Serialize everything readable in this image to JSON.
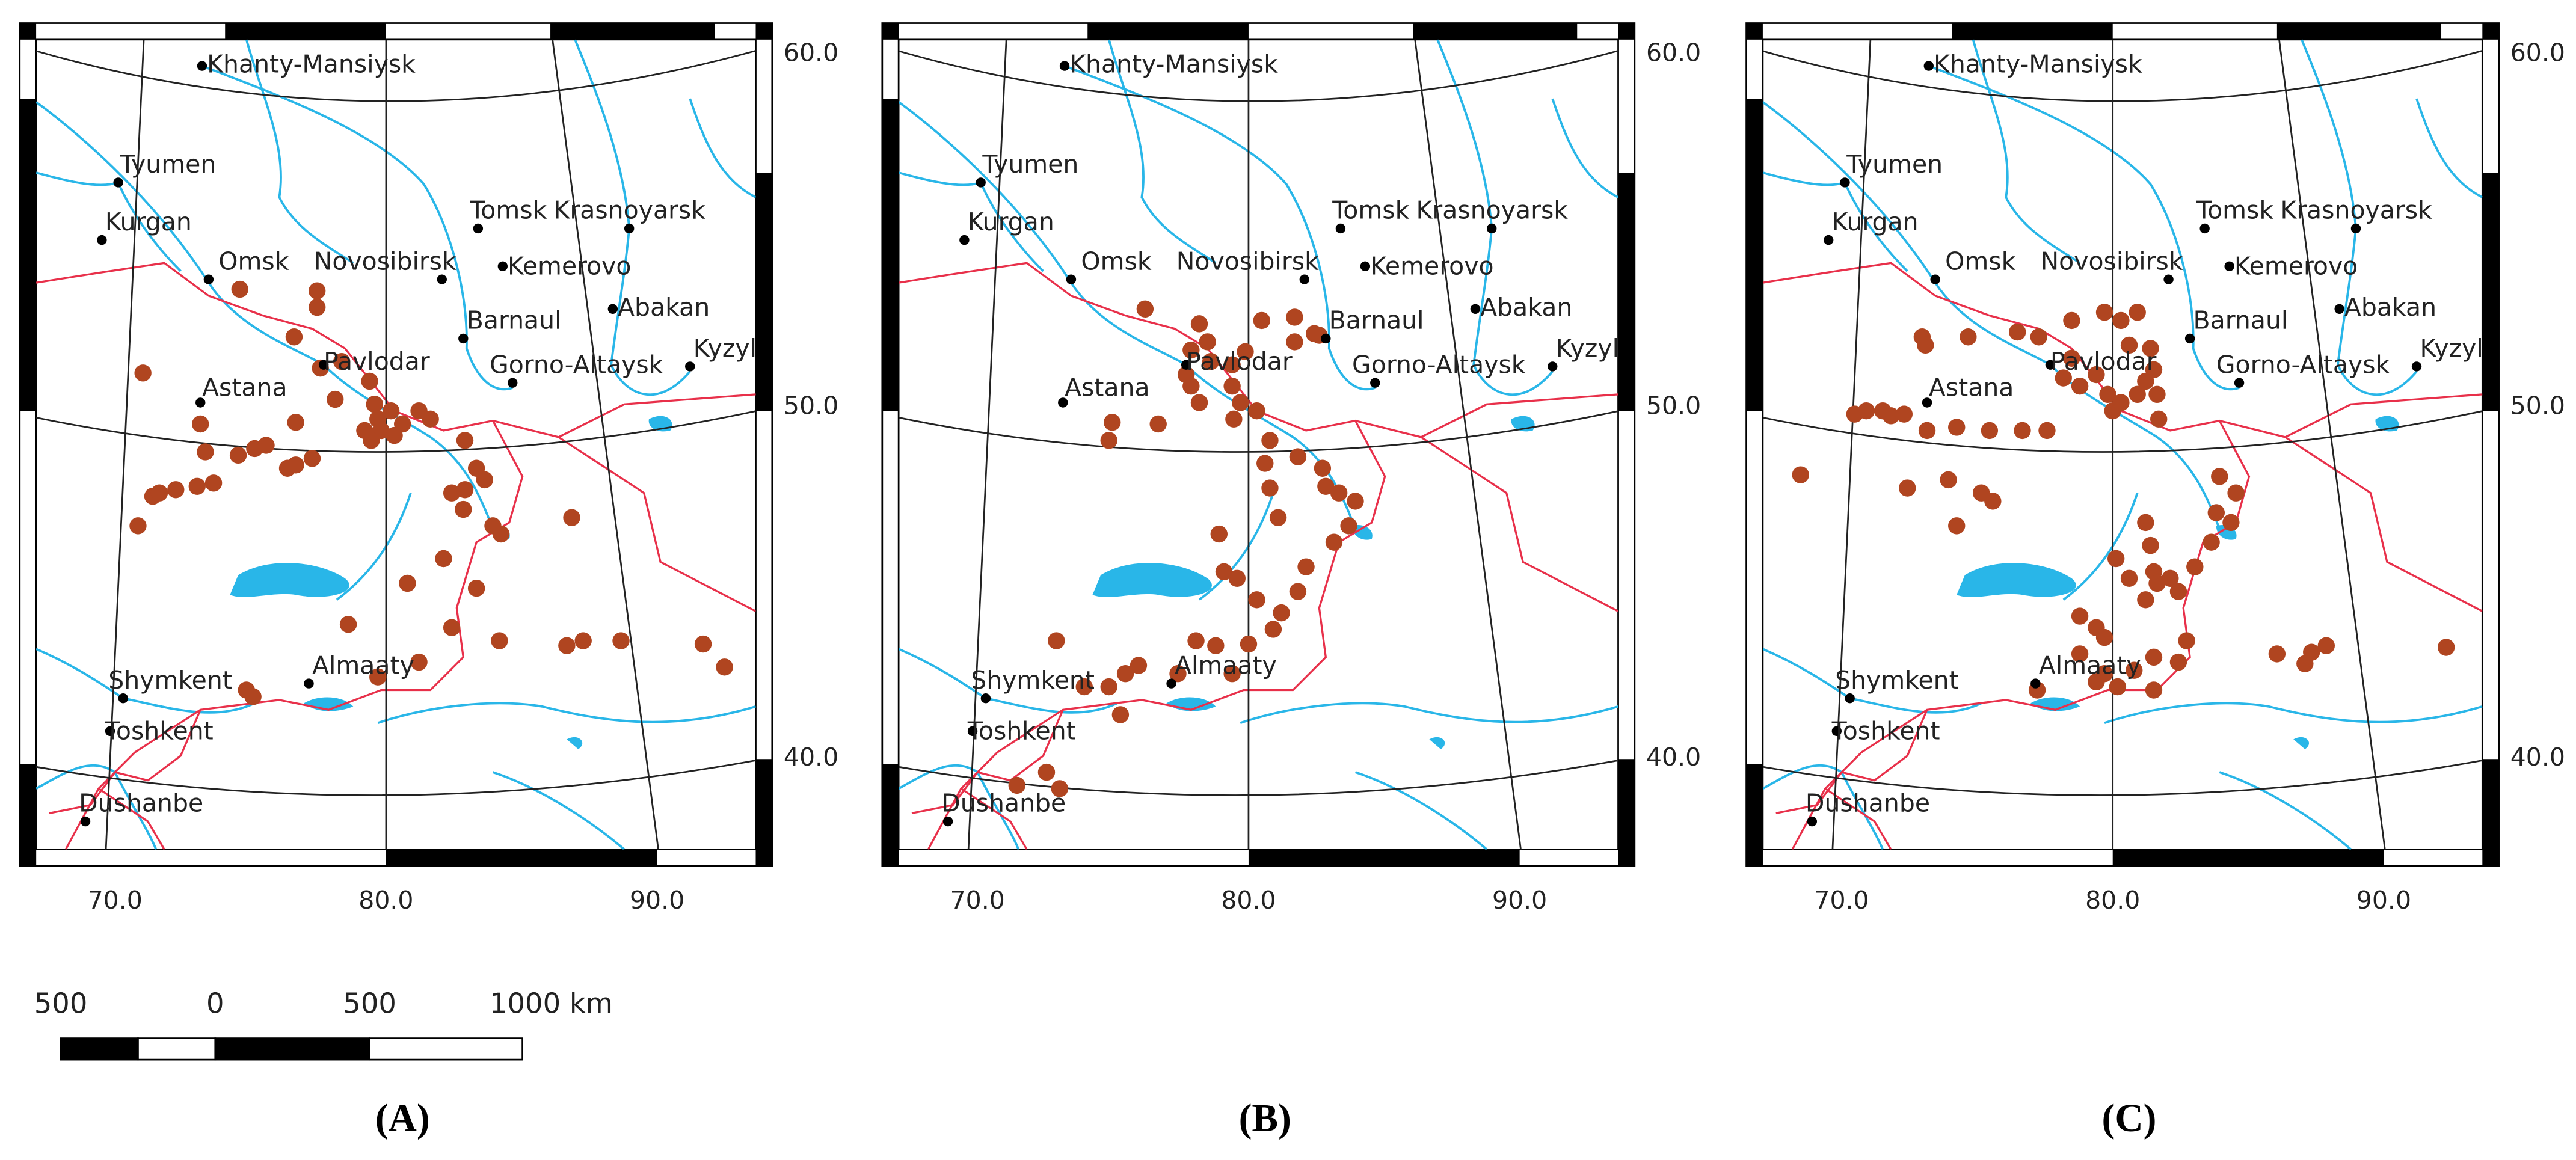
{
  "panels": [
    {
      "label": "(A)",
      "cities": [
        "Khanty-Mansiysk",
        "Tyumen",
        "Kurgan",
        "Omsk",
        "Novosibirsk",
        "Tomsk",
        "Krasnoyarsk",
        "Kemerovo",
        "Barnaul",
        "Abakan",
        "Kyzyl",
        "Gorno-Altaysk",
        "Pavlodar",
        "Astana",
        "Shymkent",
        "Almaaty",
        "Toshkent",
        "Dushanbe"
      ],
      "lat_labels": [
        "60.0",
        "50.0",
        "40.0"
      ],
      "lon_labels": [
        "70.0",
        "80.0",
        "90.0"
      ]
    },
    {
      "label": "(B)",
      "cities": [
        "Khanty-Mansiysk",
        "Tyumen",
        "Kurgan",
        "Omsk",
        "Novosibirsk",
        "Tomsk",
        "Krasnoyarsk",
        "Kemerovo",
        "Barnaul",
        "Abakan",
        "Kyzyl",
        "Gorno-Altaysk",
        "Pavlodar",
        "Astana",
        "Shymkent",
        "Almaaty",
        "Toshkent",
        "Dushanbe"
      ],
      "lat_labels": [
        "60.0",
        "50.0",
        "40.0"
      ],
      "lon_labels": [
        "70.0",
        "80.0",
        "90.0"
      ]
    },
    {
      "label": "(C)",
      "cities": [
        "Khanty-Mansiysk",
        "Tyumen",
        "Kurgan",
        "Omsk",
        "Novosibirsk",
        "Tomsk",
        "Krasnoyarsk",
        "Kemerovo",
        "Barnaul",
        "Abakan",
        "Kyzyl",
        "Gorno-Altaysk",
        "Pavlodar",
        "Astana",
        "Shymkent",
        "Almaaty",
        "Toshkent",
        "Dushanbe"
      ],
      "lat_labels": [
        "60.0",
        "50.0",
        "40.0"
      ],
      "lon_labels": [
        "70.0",
        "80.0",
        "90.0"
      ]
    }
  ],
  "scale_bar": {
    "labels": [
      "500",
      "0",
      "500",
      "1000 km"
    ]
  }
}
